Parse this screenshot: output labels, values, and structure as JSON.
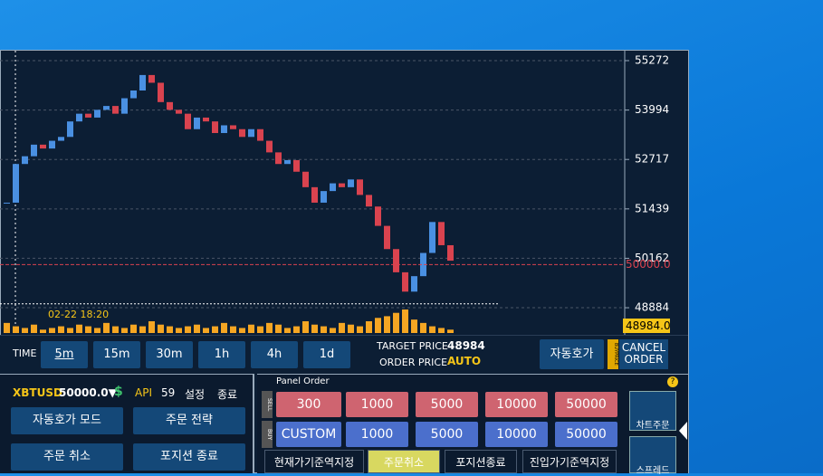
{
  "chart": {
    "type": "candlestick",
    "closes": [
      51600,
      52600,
      52800,
      53100,
      53000,
      53200,
      53300,
      53700,
      53900,
      53800,
      54000,
      54100,
      53900,
      54300,
      54500,
      54900,
      54700,
      54200,
      54000,
      53900,
      53500,
      53800,
      53700,
      53400,
      53600,
      53500,
      53300,
      53500,
      53200,
      52900,
      52600,
      52700,
      52400,
      52000,
      51600,
      51900,
      52100,
      52000,
      52200,
      51800,
      51500,
      51000,
      50400,
      49800,
      49300,
      49700,
      50300,
      51100,
      50500,
      50100
    ],
    "volumes": [
      6,
      4,
      3,
      5,
      2,
      3,
      4,
      3,
      5,
      4,
      3,
      6,
      4,
      3,
      5,
      4,
      7,
      5,
      4,
      3,
      4,
      5,
      3,
      4,
      6,
      4,
      3,
      5,
      4,
      6,
      5,
      3,
      4,
      7,
      5,
      4,
      3,
      6,
      5,
      4,
      7,
      9,
      10,
      12,
      14,
      8,
      6,
      4,
      3,
      2
    ],
    "ylim": [
      48230,
      55506
    ],
    "yticks": [
      48884,
      50162,
      51439,
      52717,
      53994,
      55272
    ],
    "order_line": {
      "value": 50000,
      "label": "50000.0"
    },
    "last_price": {
      "value": 48984,
      "label": "48984.0"
    },
    "time_label": "02-22 18:20",
    "grid": true
  },
  "toolbar": {
    "time_label": "TIME",
    "timeframes": [
      "5m",
      "15m",
      "30m",
      "1h",
      "4h",
      "1d"
    ],
    "selected": 0,
    "target_price_label": "TARGET PRICE",
    "target_price": "48984",
    "order_price_label": "ORDER PRICE",
    "order_price": "AUTO",
    "auto_quote": "자동호가",
    "buyprice_tag": "BUYPRICE",
    "cancel_order": "CANCEL ORDER"
  },
  "left_panel": {
    "symbol": "XBTUSD",
    "price": "50000.0▼",
    "dollar": "$",
    "api": "API",
    "api_count": "59",
    "settings": "설정",
    "exit": "종료",
    "buttons": [
      "자동호가 모드",
      "주문 전략",
      "주문 취소",
      "포지션 종료"
    ]
  },
  "order_panel": {
    "title": "Panel Order",
    "sell_tag": "SELL",
    "buy_tag": "BUY",
    "sell": [
      "300",
      "1000",
      "5000",
      "10000",
      "50000"
    ],
    "buy": [
      "CUSTOM",
      "1000",
      "5000",
      "10000",
      "50000"
    ],
    "actions": [
      "현재가기준역지정",
      "주문취소",
      "포지션종료",
      "진입가기준역지정"
    ],
    "help": "?",
    "chart_order": "차트주문",
    "spread": "스프레드"
  }
}
